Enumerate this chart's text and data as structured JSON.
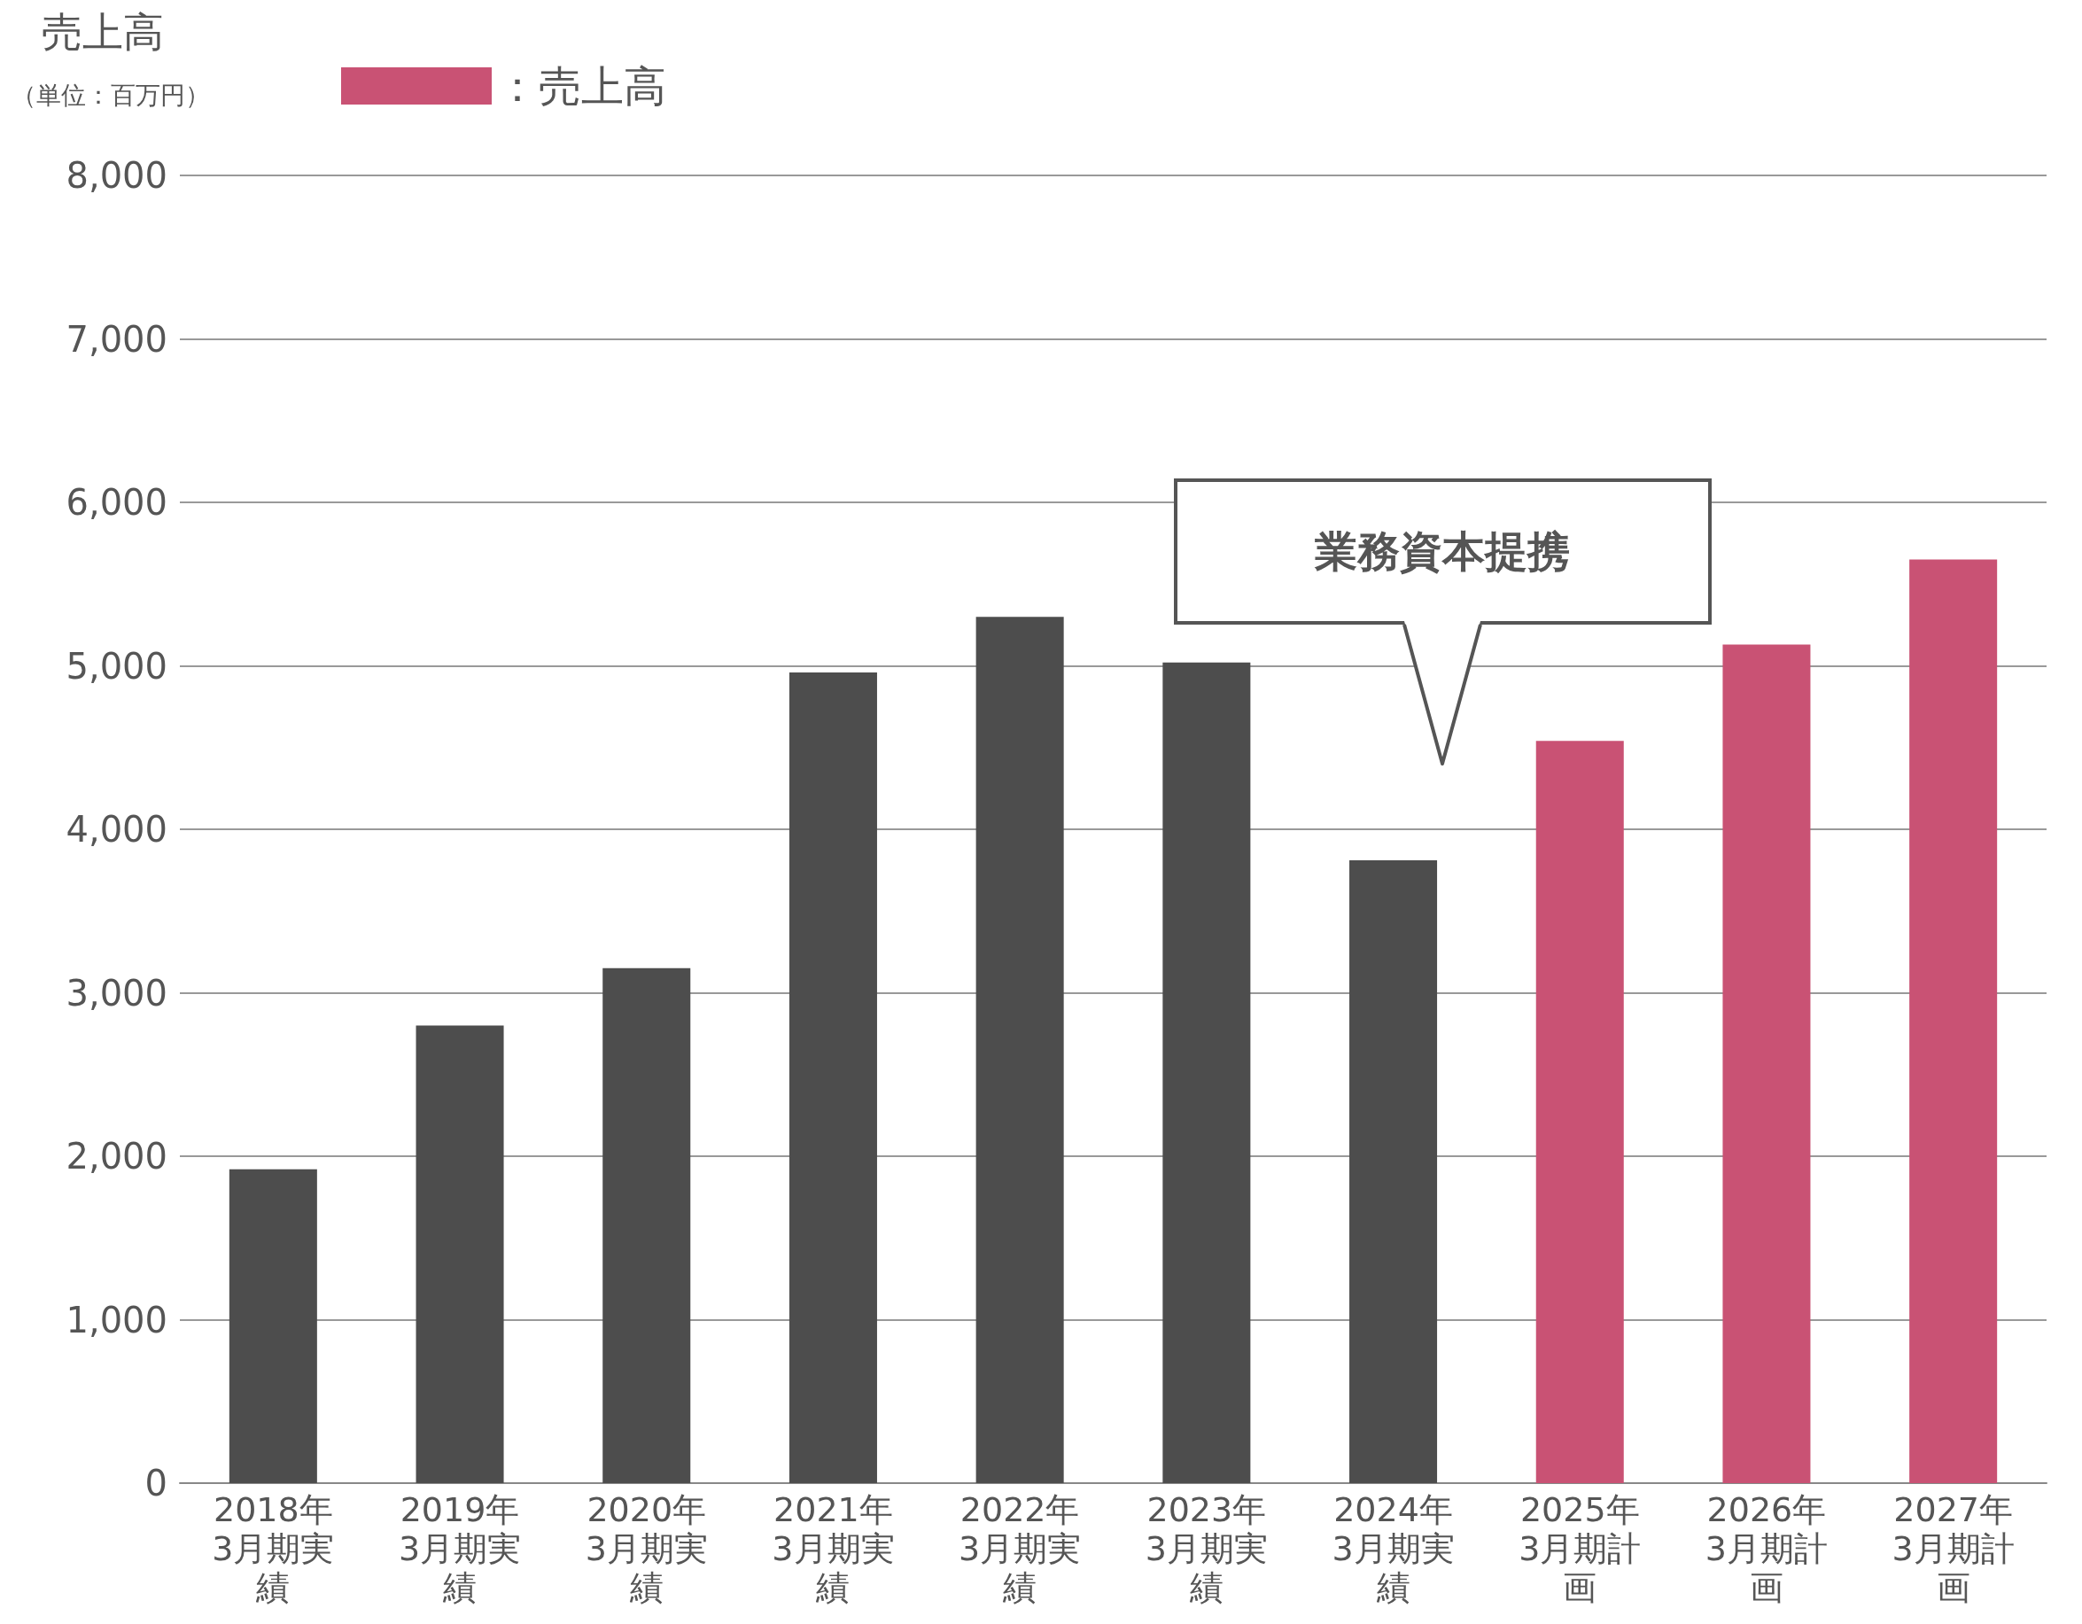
{
  "chart_data": {
    "type": "bar",
    "title": "売上高",
    "subtitle": "（単位：百万円）",
    "categories": [
      "2018年3月期実績",
      "2019年3月期実績",
      "2020年3月期実績",
      "2021年3月期実績",
      "2022年3月期実績",
      "2023年3月期実績",
      "2024年3月期実績",
      "2025年3月期計画",
      "2026年3月期計画",
      "2027年3月期計画"
    ],
    "series": [
      {
        "color": "#4d4d4d",
        "values": [
          1920,
          2800,
          3150,
          4960,
          5300,
          5020,
          3810,
          null,
          null,
          null
        ]
      },
      {
        "name": "：売上高",
        "color": "#c95274",
        "values": [
          null,
          null,
          null,
          null,
          null,
          null,
          null,
          4540,
          5130,
          5650
        ]
      }
    ],
    "ylim": [
      0,
      8000
    ],
    "yticks": [
      {
        "value": 0,
        "label": "0"
      },
      {
        "value": 1000,
        "label": "1,000"
      },
      {
        "value": 2000,
        "label": "2,000"
      },
      {
        "value": 3000,
        "label": "3,000"
      },
      {
        "value": 4000,
        "label": "4,000"
      },
      {
        "value": 5000,
        "label": "5,000"
      },
      {
        "value": 6000,
        "label": "6,000"
      },
      {
        "value": 7000,
        "label": "7,000"
      },
      {
        "value": 8000,
        "label": "8,000"
      }
    ],
    "grid": "y",
    "legend": "top left",
    "annotations": [
      "業務資本提携"
    ]
  }
}
